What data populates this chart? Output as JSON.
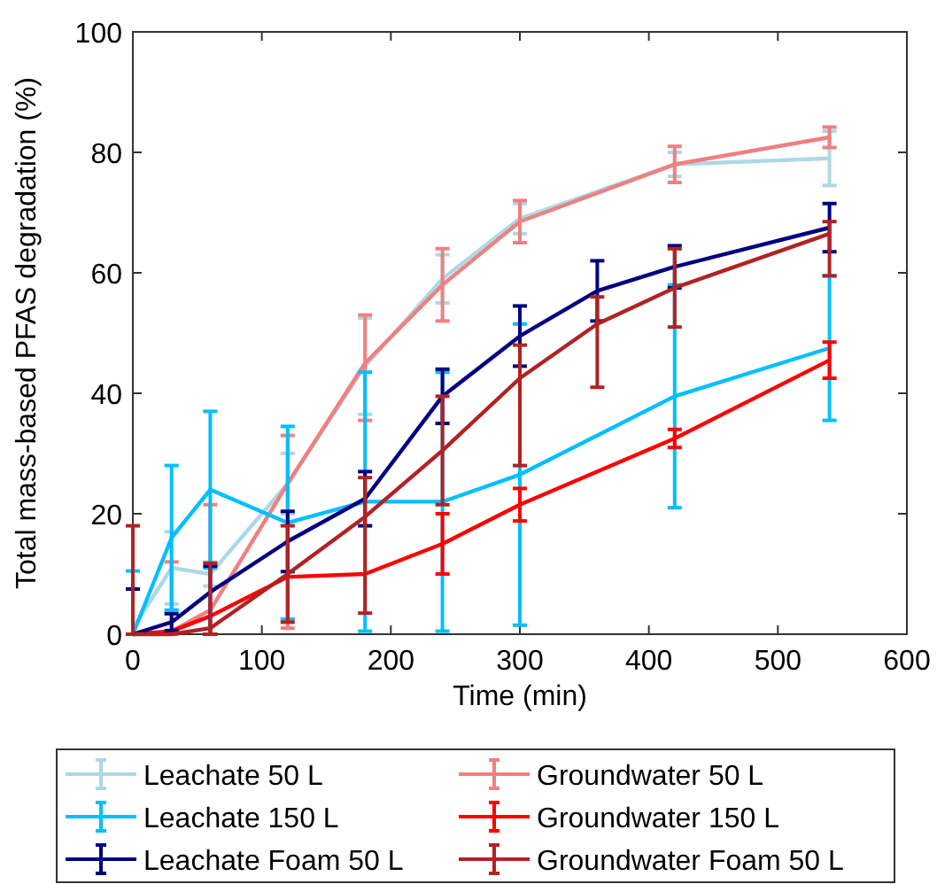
{
  "chart_data": {
    "type": "line",
    "xlabel": "Time (min)",
    "ylabel": "Total mass-based PFAS degradation (%)",
    "xlim": [
      0,
      600
    ],
    "xticks": [
      0,
      100,
      200,
      300,
      400,
      500,
      600
    ],
    "ylim": [
      0,
      100
    ],
    "yticks": [
      0,
      20,
      40,
      60,
      80,
      100
    ],
    "grid": false,
    "legend": "bottom",
    "marker": "none",
    "line_style": "solid",
    "x": [
      0,
      30,
      60,
      120,
      180,
      240,
      300,
      420,
      540
    ],
    "series": [
      {
        "name": "Leachate 50 L",
        "color": "#add8e6",
        "values": [
          1,
          11,
          10,
          25,
          44.5,
          59,
          69,
          78,
          79
        ],
        "errors": [
          null,
          6,
          2,
          5,
          8,
          4,
          2.5,
          2,
          4.5
        ]
      },
      {
        "name": "Groundwater 50 L",
        "color": "#f08080",
        "values": [
          0,
          0.5,
          4,
          25,
          45,
          58,
          68.5,
          78,
          82.5
        ],
        "errors": [
          null,
          [
            0,
            12
          ],
          [
            0,
            21.5
          ],
          [
            1,
            33
          ],
          [
            35.5,
            53
          ],
          6,
          3.5,
          3,
          1.7
        ]
      },
      {
        "name": "Leachate 150 L",
        "color": "#00bfff",
        "values": [
          0,
          16,
          24,
          18.5,
          22,
          22,
          26.5,
          39.5,
          47.5
        ],
        "errors": [
          [
            0,
            10.5
          ],
          12,
          13,
          16,
          21.5,
          21.5,
          25,
          18.5,
          12
        ]
      },
      {
        "name": "Groundwater 150 L",
        "color": "#ff0000",
        "values": [
          0,
          0.5,
          3,
          9.5,
          10,
          15,
          21.5,
          32.5,
          45.5
        ],
        "errors": [
          null,
          null,
          null,
          null,
          null,
          5,
          2.7,
          1.5,
          3
        ]
      },
      {
        "name": "Leachate Foam 50 L",
        "color": "#000080",
        "x": [
          0,
          30,
          60,
          120,
          180,
          240,
          300,
          360,
          420,
          540
        ],
        "values": [
          0,
          2,
          7,
          15.4,
          22.5,
          39.5,
          49.5,
          57,
          61,
          67.5
        ],
        "errors": [
          [
            0,
            7.5
          ],
          1.4,
          [
            0,
            11.3
          ],
          5,
          4.5,
          4.5,
          5,
          5,
          3.5,
          4
        ]
      },
      {
        "name": "Groundwater Foam 50 L",
        "color": "#b22222",
        "x": [
          0,
          30,
          60,
          120,
          180,
          240,
          300,
          360,
          420,
          540
        ],
        "values": [
          0,
          0,
          1,
          10,
          19.5,
          30.5,
          42.5,
          51.5,
          57.5,
          66.5
        ],
        "errors": [
          [
            0,
            18
          ],
          null,
          [
            0,
            11.8
          ],
          8,
          [
            3.5,
            26
          ],
          9,
          [
            28,
            48
          ],
          [
            41,
            56
          ],
          6.5,
          [
            59.5,
            68.5
          ]
        ]
      }
    ]
  }
}
